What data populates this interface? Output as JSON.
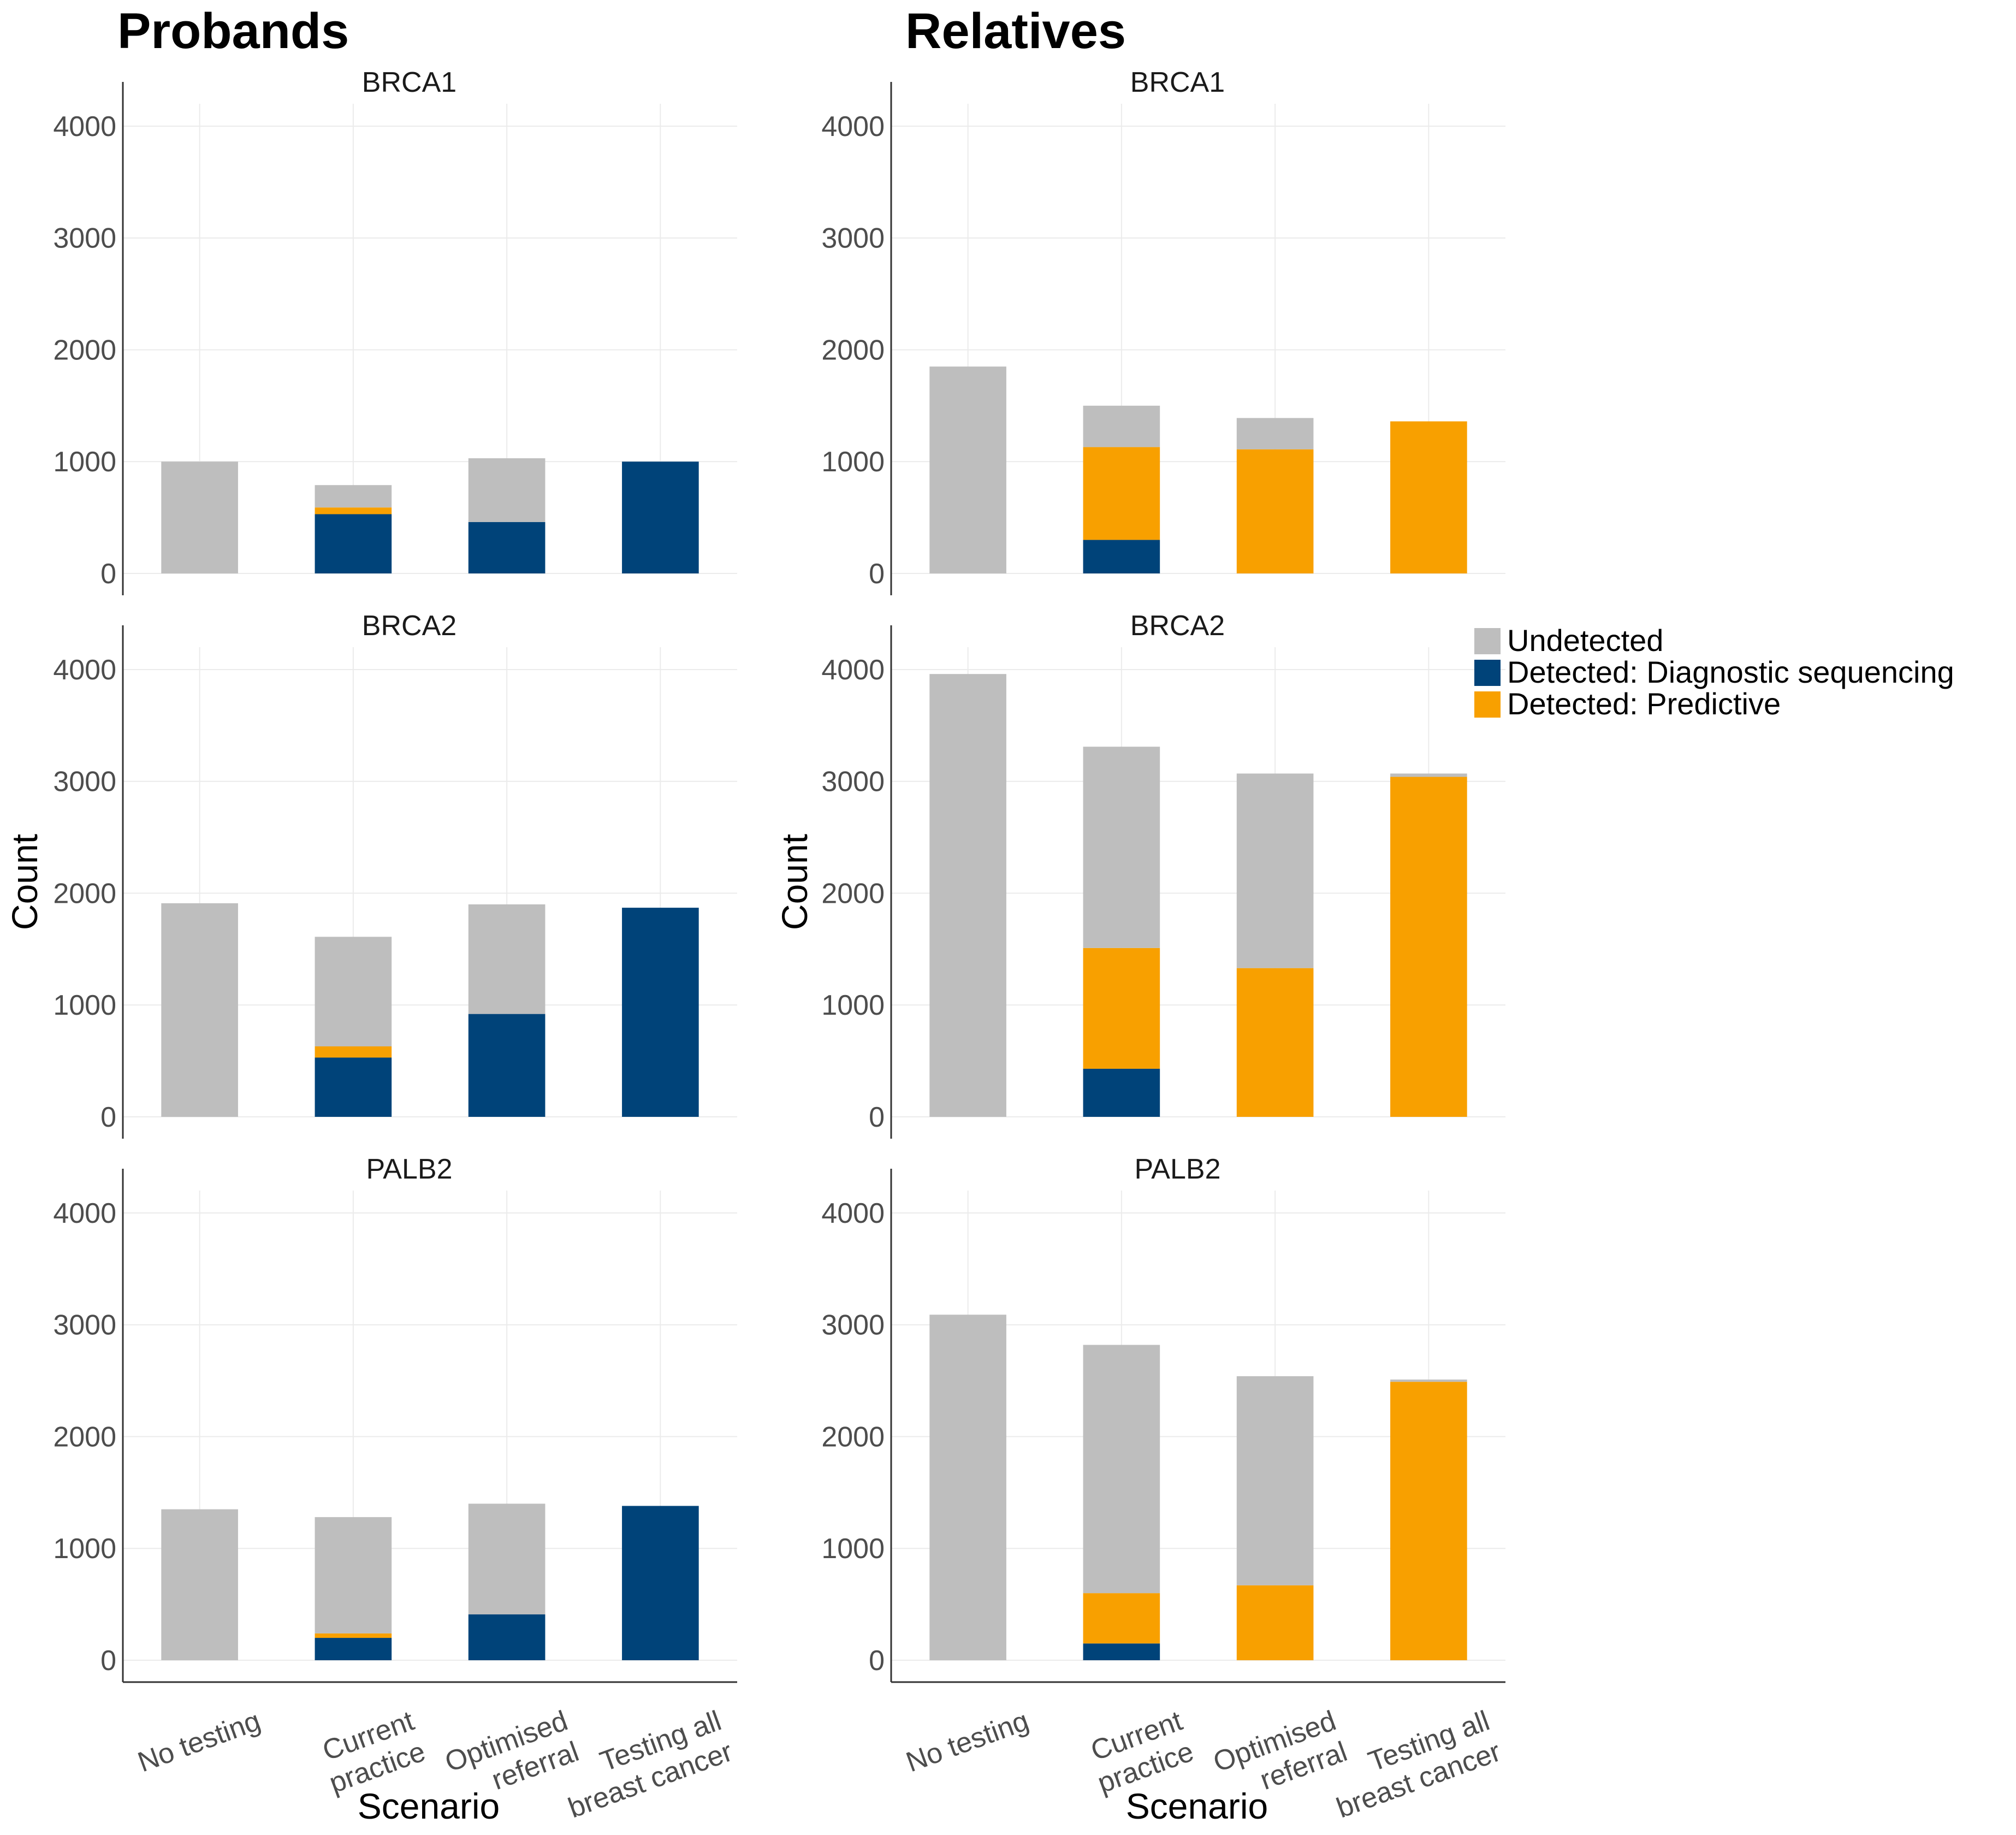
{
  "chart_data": {
    "type": "bar",
    "stacked": true,
    "column_titles": [
      "Probands",
      "Relatives"
    ],
    "xlabel": "Scenario",
    "ylabel": "Count",
    "ylim": [
      0,
      4200
    ],
    "yticks": [
      "0",
      "1000",
      "2000",
      "3000",
      "4000"
    ],
    "categories": [
      [
        "No testing"
      ],
      [
        "Current",
        "practice"
      ],
      [
        "Optimised",
        "referral"
      ],
      [
        "Testing all",
        "breast cancer"
      ]
    ],
    "legend": [
      {
        "key": "diag",
        "label": "Detected: Diagnostic sequencing",
        "color": "#004379"
      },
      {
        "key": "pred",
        "label": "Detected: Predictive",
        "color": "#F8A000"
      },
      {
        "key": "undet",
        "label": "Undetected",
        "color": "#BEBEBE"
      }
    ],
    "legend_order": [
      "undet",
      "diag",
      "pred"
    ],
    "legend_position": "right",
    "panels": [
      {
        "column": 0,
        "row": 0,
        "gene": "BRCA1",
        "series": {
          "diag": [
            0,
            530,
            460,
            1000
          ],
          "pred": [
            0,
            60,
            0,
            0
          ],
          "undet": [
            1000,
            200,
            570,
            0
          ]
        }
      },
      {
        "column": 1,
        "row": 0,
        "gene": "BRCA1",
        "series": {
          "diag": [
            0,
            300,
            0,
            0
          ],
          "pred": [
            0,
            830,
            1110,
            1360
          ],
          "undet": [
            1850,
            370,
            280,
            0
          ]
        }
      },
      {
        "column": 0,
        "row": 1,
        "gene": "BRCA2",
        "series": {
          "diag": [
            0,
            530,
            920,
            1870
          ],
          "pred": [
            0,
            100,
            0,
            0
          ],
          "undet": [
            1910,
            980,
            980,
            0
          ]
        }
      },
      {
        "column": 1,
        "row": 1,
        "gene": "BRCA2",
        "series": {
          "diag": [
            0,
            430,
            0,
            0
          ],
          "pred": [
            0,
            1080,
            1330,
            3040
          ],
          "undet": [
            3960,
            1800,
            1740,
            30
          ]
        }
      },
      {
        "column": 0,
        "row": 2,
        "gene": "PALB2",
        "series": {
          "diag": [
            0,
            200,
            410,
            1380
          ],
          "pred": [
            0,
            40,
            0,
            0
          ],
          "undet": [
            1350,
            1040,
            990,
            0
          ]
        }
      },
      {
        "column": 1,
        "row": 2,
        "gene": "PALB2",
        "series": {
          "diag": [
            0,
            150,
            0,
            0
          ],
          "pred": [
            0,
            450,
            670,
            2490
          ],
          "undet": [
            3090,
            2220,
            1870,
            20
          ]
        }
      }
    ]
  }
}
